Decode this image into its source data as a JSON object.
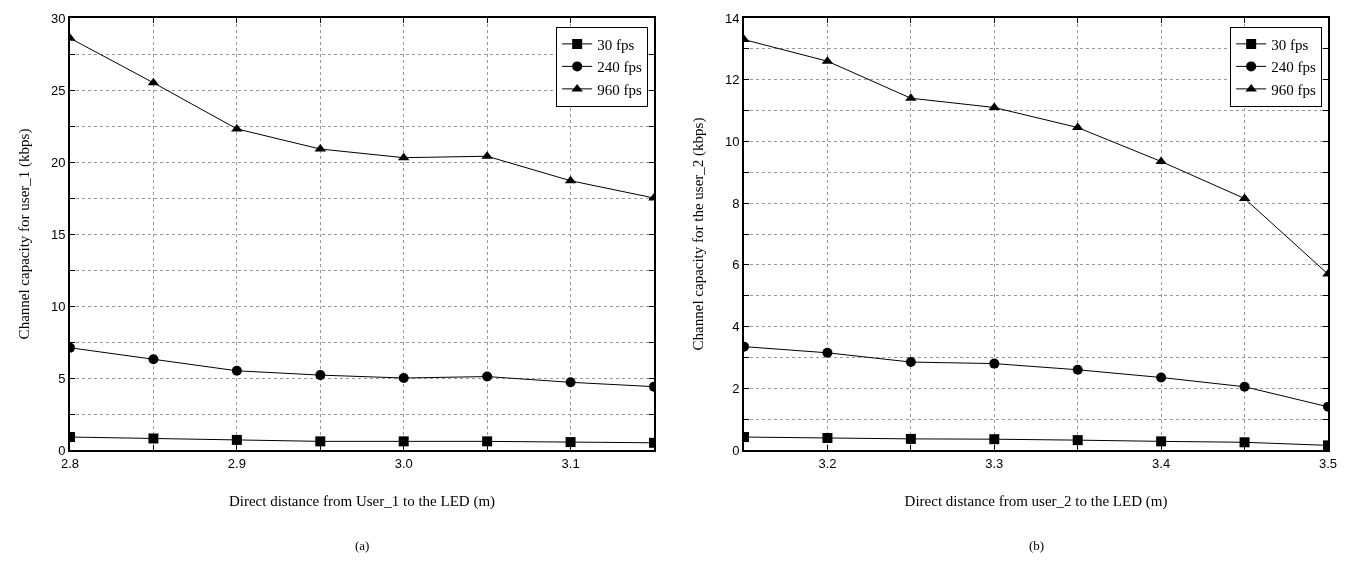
{
  "chart_data": [
    {
      "type": "line",
      "xlabel": "Direct distance from User_1 to the LED (m)",
      "ylabel": "Channel capacity for user_1 (kbps)",
      "annotations": [
        "(a)"
      ],
      "x": [
        2.8,
        2.85,
        2.9,
        2.95,
        3.0,
        3.05,
        3.1,
        3.15
      ],
      "series": [
        {
          "name": "30 fps",
          "color": "#000000",
          "marker": "square",
          "values": [
            0.9,
            0.8,
            0.7,
            0.6,
            0.6,
            0.6,
            0.55,
            0.5
          ]
        },
        {
          "name": "240 fps",
          "color": "#000000",
          "marker": "circle",
          "values": [
            7.1,
            6.3,
            5.5,
            5.2,
            5.0,
            5.1,
            4.7,
            4.4
          ]
        },
        {
          "name": "960 fps",
          "color": "#000000",
          "marker": "triangle",
          "values": [
            28.6,
            25.5,
            22.3,
            20.9,
            20.3,
            20.4,
            18.7,
            17.5
          ]
        }
      ],
      "xlim": [
        2.8,
        3.15
      ],
      "ylim": [
        0,
        30
      ],
      "xticks": [
        2.8,
        {
          "value": 2.85,
          "label": null
        },
        2.9,
        {
          "value": 2.95,
          "label": null
        },
        {
          "value": 3.0,
          "label": "3.0"
        },
        {
          "value": 3.05,
          "label": null
        },
        3.1,
        {
          "value": 3.15,
          "label": null
        }
      ],
      "yticks": [
        0,
        {
          "value": 2.5,
          "label": null
        },
        5,
        {
          "value": 7.5,
          "label": null
        },
        10,
        {
          "value": 12.5,
          "label": null
        },
        15,
        {
          "value": 17.5,
          "label": null
        },
        20,
        {
          "value": 22.5,
          "label": null
        },
        25,
        {
          "value": 27.5,
          "label": null
        },
        30
      ],
      "grid": true,
      "legend": "top right",
      "line_style": "solid"
    },
    {
      "type": "line",
      "xlabel": "Direct distance from user_2 to the LED (m)",
      "ylabel": "Channel capacity for the user_2 (kbps)",
      "annotations": [
        "(b)"
      ],
      "x": [
        3.15,
        3.2,
        3.25,
        3.3,
        3.35,
        3.4,
        3.45,
        3.5
      ],
      "series": [
        {
          "name": "30 fps",
          "color": "#000000",
          "marker": "square",
          "values": [
            0.42,
            0.39,
            0.36,
            0.35,
            0.32,
            0.28,
            0.25,
            0.15
          ]
        },
        {
          "name": "240 fps",
          "color": "#000000",
          "marker": "circle",
          "values": [
            3.35,
            3.15,
            2.85,
            2.8,
            2.6,
            2.35,
            2.05,
            1.4
          ]
        },
        {
          "name": "960 fps",
          "color": "#000000",
          "marker": "triangle",
          "values": [
            13.3,
            12.6,
            11.4,
            11.1,
            10.45,
            9.35,
            8.15,
            5.7
          ]
        }
      ],
      "xlim": [
        3.15,
        3.5
      ],
      "ylim": [
        0,
        14
      ],
      "xticks": [
        {
          "value": 3.15,
          "label": null
        },
        3.2,
        {
          "value": 3.25,
          "label": null
        },
        3.3,
        {
          "value": 3.35,
          "label": null
        },
        3.4,
        {
          "value": 3.45,
          "label": null
        },
        3.5
      ],
      "yticks": [
        0,
        {
          "value": 1,
          "label": null
        },
        2,
        {
          "value": 3,
          "label": null
        },
        4,
        {
          "value": 5,
          "label": null
        },
        6,
        {
          "value": 7,
          "label": null
        },
        8,
        {
          "value": 9,
          "label": null
        },
        10,
        {
          "value": 11,
          "label": null
        },
        12,
        {
          "value": 13,
          "label": null
        },
        14
      ],
      "grid": true,
      "legend": "top right",
      "line_style": "solid"
    }
  ]
}
